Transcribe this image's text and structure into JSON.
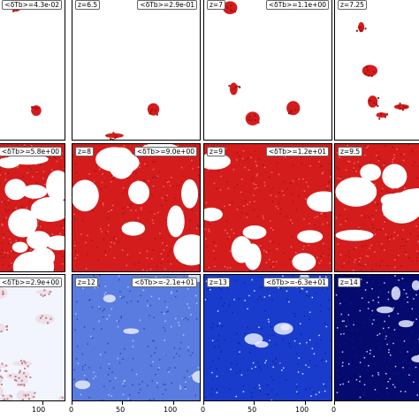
{
  "panels": [
    {
      "z": "",
      "dtb": "<δTb>=4.3e-02",
      "style": "ionized",
      "fill": 0.03
    },
    {
      "z": "z=6.5",
      "dtb": "<δTb>=2.9e-01",
      "style": "ionized",
      "fill": 0.05
    },
    {
      "z": "z=7",
      "dtb": "<δTb>=1.1e+00",
      "style": "ionized",
      "fill": 0.1
    },
    {
      "z": "z=7.25",
      "dtb": "",
      "style": "ionized",
      "fill": 0.16
    },
    {
      "z": "",
      "dtb": "<δTb>=5.8e+00",
      "style": "ionized",
      "fill": 0.55
    },
    {
      "z": "z=8",
      "dtb": "<δTb>=9.0e+00",
      "style": "ionized",
      "fill": 0.62
    },
    {
      "z": "z=9",
      "dtb": "<δTb>=1.2e+01",
      "style": "ionized",
      "fill": 0.7
    },
    {
      "z": "z=9.5",
      "dtb": "",
      "style": "ionized",
      "fill": 0.75
    },
    {
      "z": "",
      "dtb": "<δTb>=2.9e+00",
      "style": "pale",
      "fill": 0.4
    },
    {
      "z": "z=12",
      "dtb": "<δTb>=-2.1e+01",
      "style": "lightblue",
      "fill": 1
    },
    {
      "z": "z=13",
      "dtb": "<δTb>=-6.3e+01",
      "style": "blue",
      "fill": 1
    },
    {
      "z": "z=14",
      "dtb": "",
      "style": "darkblue",
      "fill": 1
    }
  ],
  "x_ticks": {
    "col1": [
      "100"
    ],
    "col2": [
      "0",
      "50",
      "100"
    ],
    "col3": [
      "0",
      "50",
      "100"
    ],
    "col4": [
      "0"
    ]
  },
  "colors": {
    "red": "#d41c1c",
    "blue": "#1a3ccc",
    "darkblue": "#050a6e",
    "white": "#ffffff"
  }
}
